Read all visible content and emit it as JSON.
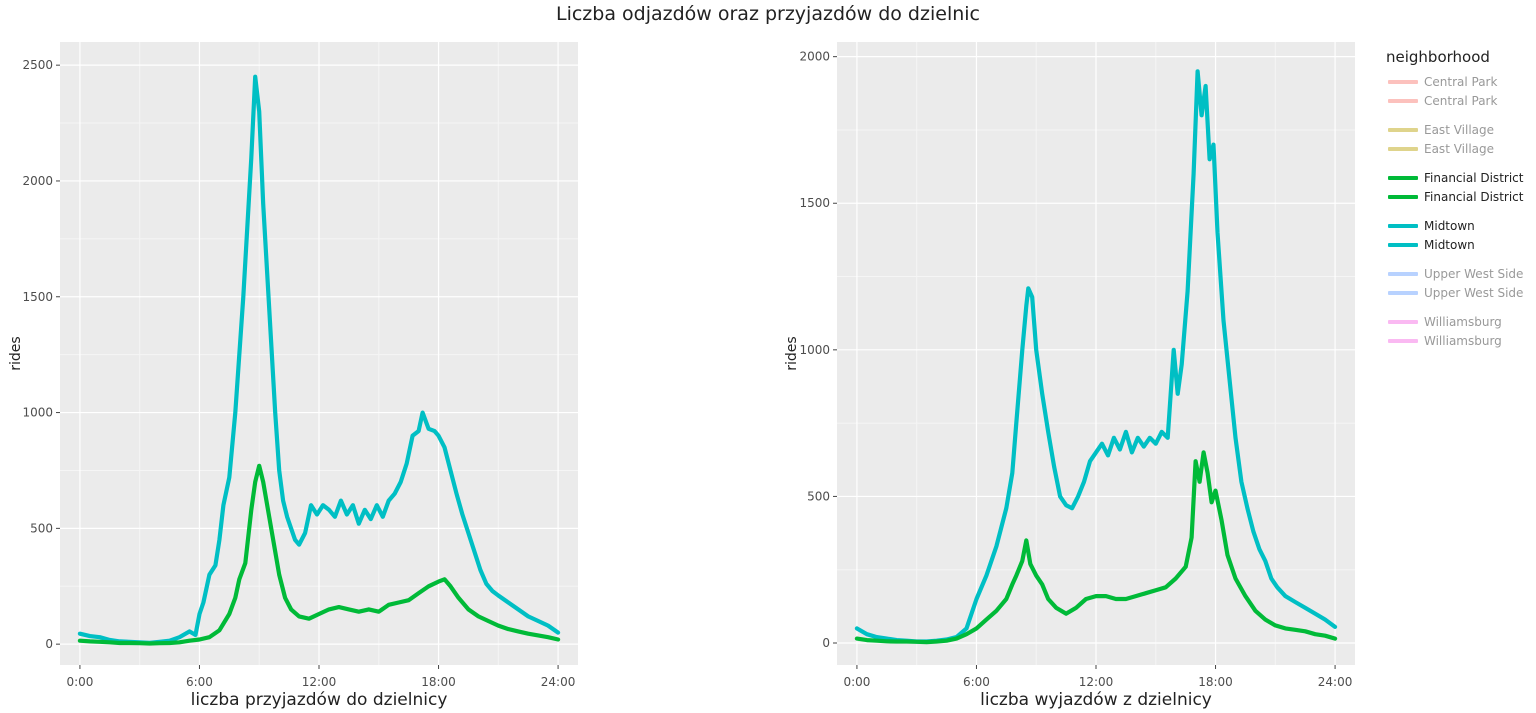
{
  "title": "Liczba odjazdów oraz przyjazdów do dzielnic",
  "legend": {
    "title": "neighborhood",
    "items": [
      {
        "name": "Central Park",
        "color": "#F8766D",
        "visible": false
      },
      {
        "name": "East Village",
        "color": "#B79F00",
        "visible": false
      },
      {
        "name": "Financial District",
        "color": "#00BA38",
        "visible": true
      },
      {
        "name": "Midtown",
        "color": "#00BFC4",
        "visible": true
      },
      {
        "name": "Upper West Side",
        "color": "#619CFF",
        "visible": false
      },
      {
        "name": "Williamsburg",
        "color": "#F564E3",
        "visible": false
      }
    ]
  },
  "chart_data": [
    {
      "type": "line",
      "xlabel": "liczba przyjazdów do dzielnicy",
      "ylabel": "rides",
      "xlim": [
        -1,
        25
      ],
      "ylim": [
        -90,
        2600
      ],
      "xticks": [
        0,
        6,
        12,
        18,
        24
      ],
      "xtick_labels": [
        "0:00",
        "6:00",
        "12:00",
        "18:00",
        "24:00"
      ],
      "yticks": [
        0,
        500,
        1000,
        1500,
        2000,
        2500
      ],
      "ytick_labels": [
        "0",
        "500",
        "1000",
        "1500",
        "2000",
        "2500"
      ],
      "grid": true,
      "series": [
        {
          "name": "Midtown",
          "color": "#00BFC4",
          "points": [
            [
              0,
              45
            ],
            [
              0.5,
              35
            ],
            [
              1,
              30
            ],
            [
              1.5,
              18
            ],
            [
              2,
              12
            ],
            [
              2.5,
              10
            ],
            [
              3,
              8
            ],
            [
              3.5,
              6
            ],
            [
              4,
              10
            ],
            [
              4.5,
              15
            ],
            [
              5,
              30
            ],
            [
              5.5,
              55
            ],
            [
              5.8,
              40
            ],
            [
              6,
              130
            ],
            [
              6.2,
              180
            ],
            [
              6.5,
              300
            ],
            [
              6.8,
              340
            ],
            [
              7,
              450
            ],
            [
              7.2,
              600
            ],
            [
              7.5,
              720
            ],
            [
              7.8,
              1000
            ],
            [
              8,
              1250
            ],
            [
              8.2,
              1500
            ],
            [
              8.4,
              1800
            ],
            [
              8.6,
              2100
            ],
            [
              8.8,
              2450
            ],
            [
              9,
              2300
            ],
            [
              9.2,
              1900
            ],
            [
              9.4,
              1600
            ],
            [
              9.6,
              1300
            ],
            [
              9.8,
              1000
            ],
            [
              10,
              750
            ],
            [
              10.2,
              620
            ],
            [
              10.4,
              550
            ],
            [
              10.6,
              500
            ],
            [
              10.8,
              450
            ],
            [
              11,
              430
            ],
            [
              11.3,
              480
            ],
            [
              11.6,
              600
            ],
            [
              11.9,
              560
            ],
            [
              12.2,
              600
            ],
            [
              12.5,
              580
            ],
            [
              12.8,
              550
            ],
            [
              13.1,
              620
            ],
            [
              13.4,
              560
            ],
            [
              13.7,
              600
            ],
            [
              14,
              520
            ],
            [
              14.3,
              580
            ],
            [
              14.6,
              540
            ],
            [
              14.9,
              600
            ],
            [
              15.2,
              550
            ],
            [
              15.5,
              620
            ],
            [
              15.8,
              650
            ],
            [
              16.1,
              700
            ],
            [
              16.4,
              780
            ],
            [
              16.7,
              900
            ],
            [
              17,
              920
            ],
            [
              17.2,
              1000
            ],
            [
              17.5,
              930
            ],
            [
              17.8,
              920
            ],
            [
              18,
              900
            ],
            [
              18.3,
              850
            ],
            [
              18.6,
              750
            ],
            [
              18.9,
              650
            ],
            [
              19.2,
              560
            ],
            [
              19.5,
              480
            ],
            [
              19.8,
              400
            ],
            [
              20.1,
              320
            ],
            [
              20.4,
              260
            ],
            [
              20.7,
              230
            ],
            [
              21,
              210
            ],
            [
              21.5,
              180
            ],
            [
              22,
              150
            ],
            [
              22.5,
              120
            ],
            [
              23,
              100
            ],
            [
              23.5,
              80
            ],
            [
              24,
              50
            ]
          ]
        },
        {
          "name": "Financial District",
          "color": "#00BA38",
          "points": [
            [
              0,
              15
            ],
            [
              0.5,
              12
            ],
            [
              1,
              10
            ],
            [
              1.5,
              8
            ],
            [
              2,
              5
            ],
            [
              2.5,
              5
            ],
            [
              3,
              4
            ],
            [
              3.5,
              3
            ],
            [
              4,
              4
            ],
            [
              4.5,
              5
            ],
            [
              5,
              8
            ],
            [
              5.5,
              15
            ],
            [
              6,
              20
            ],
            [
              6.5,
              30
            ],
            [
              7,
              60
            ],
            [
              7.5,
              130
            ],
            [
              7.8,
              200
            ],
            [
              8,
              280
            ],
            [
              8.3,
              350
            ],
            [
              8.6,
              580
            ],
            [
              8.8,
              700
            ],
            [
              9,
              770
            ],
            [
              9.2,
              700
            ],
            [
              9.5,
              550
            ],
            [
              9.8,
              400
            ],
            [
              10,
              300
            ],
            [
              10.3,
              200
            ],
            [
              10.6,
              150
            ],
            [
              11,
              120
            ],
            [
              11.5,
              110
            ],
            [
              12,
              130
            ],
            [
              12.5,
              150
            ],
            [
              13,
              160
            ],
            [
              13.5,
              150
            ],
            [
              14,
              140
            ],
            [
              14.5,
              150
            ],
            [
              15,
              140
            ],
            [
              15.5,
              170
            ],
            [
              16,
              180
            ],
            [
              16.5,
              190
            ],
            [
              17,
              220
            ],
            [
              17.5,
              250
            ],
            [
              18,
              270
            ],
            [
              18.3,
              280
            ],
            [
              18.6,
              250
            ],
            [
              19,
              200
            ],
            [
              19.5,
              150
            ],
            [
              20,
              120
            ],
            [
              20.5,
              100
            ],
            [
              21,
              80
            ],
            [
              21.5,
              65
            ],
            [
              22,
              55
            ],
            [
              22.5,
              45
            ],
            [
              23,
              38
            ],
            [
              23.5,
              30
            ],
            [
              24,
              20
            ]
          ]
        }
      ]
    },
    {
      "type": "line",
      "xlabel": "liczba wyjazdów z dzielnicy",
      "ylabel": "rides",
      "xlim": [
        -1,
        25
      ],
      "ylim": [
        -75,
        2050
      ],
      "xticks": [
        0,
        6,
        12,
        18,
        24
      ],
      "xtick_labels": [
        "0:00",
        "6:00",
        "12:00",
        "18:00",
        "24:00"
      ],
      "yticks": [
        0,
        500,
        1000,
        1500,
        2000
      ],
      "ytick_labels": [
        "0",
        "500",
        "1000",
        "1500",
        "2000"
      ],
      "grid": true,
      "series": [
        {
          "name": "Midtown",
          "color": "#00BFC4",
          "points": [
            [
              0,
              50
            ],
            [
              0.5,
              30
            ],
            [
              1,
              20
            ],
            [
              1.5,
              15
            ],
            [
              2,
              10
            ],
            [
              2.5,
              8
            ],
            [
              3,
              5
            ],
            [
              3.5,
              5
            ],
            [
              4,
              8
            ],
            [
              4.5,
              12
            ],
            [
              5,
              20
            ],
            [
              5.5,
              50
            ],
            [
              6,
              150
            ],
            [
              6.5,
              230
            ],
            [
              7,
              330
            ],
            [
              7.5,
              460
            ],
            [
              7.8,
              580
            ],
            [
              8,
              750
            ],
            [
              8.3,
              1000
            ],
            [
              8.5,
              1150
            ],
            [
              8.6,
              1210
            ],
            [
              8.8,
              1180
            ],
            [
              9,
              1000
            ],
            [
              9.3,
              850
            ],
            [
              9.6,
              720
            ],
            [
              9.9,
              600
            ],
            [
              10.2,
              500
            ],
            [
              10.5,
              470
            ],
            [
              10.8,
              460
            ],
            [
              11.1,
              500
            ],
            [
              11.4,
              550
            ],
            [
              11.7,
              620
            ],
            [
              12,
              650
            ],
            [
              12.3,
              680
            ],
            [
              12.6,
              640
            ],
            [
              12.9,
              700
            ],
            [
              13.2,
              660
            ],
            [
              13.5,
              720
            ],
            [
              13.8,
              650
            ],
            [
              14.1,
              700
            ],
            [
              14.4,
              670
            ],
            [
              14.7,
              700
            ],
            [
              15,
              680
            ],
            [
              15.3,
              720
            ],
            [
              15.6,
              700
            ],
            [
              15.9,
              1000
            ],
            [
              16.1,
              850
            ],
            [
              16.3,
              950
            ],
            [
              16.6,
              1200
            ],
            [
              16.9,
              1600
            ],
            [
              17.1,
              1950
            ],
            [
              17.3,
              1800
            ],
            [
              17.5,
              1900
            ],
            [
              17.7,
              1650
            ],
            [
              17.9,
              1700
            ],
            [
              18.1,
              1400
            ],
            [
              18.4,
              1100
            ],
            [
              18.7,
              900
            ],
            [
              19,
              700
            ],
            [
              19.3,
              550
            ],
            [
              19.6,
              460
            ],
            [
              19.9,
              380
            ],
            [
              20.2,
              320
            ],
            [
              20.5,
              280
            ],
            [
              20.8,
              220
            ],
            [
              21.1,
              190
            ],
            [
              21.5,
              160
            ],
            [
              22,
              140
            ],
            [
              22.5,
              120
            ],
            [
              23,
              100
            ],
            [
              23.5,
              80
            ],
            [
              24,
              55
            ]
          ]
        },
        {
          "name": "Financial District",
          "color": "#00BA38",
          "points": [
            [
              0,
              15
            ],
            [
              0.5,
              10
            ],
            [
              1,
              8
            ],
            [
              1.5,
              6
            ],
            [
              2,
              5
            ],
            [
              2.5,
              5
            ],
            [
              3,
              4
            ],
            [
              3.5,
              3
            ],
            [
              4,
              5
            ],
            [
              4.5,
              8
            ],
            [
              5,
              15
            ],
            [
              5.5,
              30
            ],
            [
              6,
              50
            ],
            [
              6.5,
              80
            ],
            [
              7,
              110
            ],
            [
              7.5,
              150
            ],
            [
              7.8,
              200
            ],
            [
              8,
              230
            ],
            [
              8.3,
              280
            ],
            [
              8.5,
              350
            ],
            [
              8.7,
              270
            ],
            [
              9,
              230
            ],
            [
              9.3,
              200
            ],
            [
              9.6,
              150
            ],
            [
              10,
              120
            ],
            [
              10.5,
              100
            ],
            [
              11,
              120
            ],
            [
              11.5,
              150
            ],
            [
              12,
              160
            ],
            [
              12.5,
              160
            ],
            [
              13,
              150
            ],
            [
              13.5,
              150
            ],
            [
              14,
              160
            ],
            [
              14.5,
              170
            ],
            [
              15,
              180
            ],
            [
              15.5,
              190
            ],
            [
              16,
              220
            ],
            [
              16.5,
              260
            ],
            [
              16.8,
              360
            ],
            [
              17,
              620
            ],
            [
              17.2,
              550
            ],
            [
              17.4,
              650
            ],
            [
              17.6,
              580
            ],
            [
              17.8,
              480
            ],
            [
              18,
              520
            ],
            [
              18.3,
              420
            ],
            [
              18.6,
              300
            ],
            [
              19,
              220
            ],
            [
              19.5,
              160
            ],
            [
              20,
              110
            ],
            [
              20.5,
              80
            ],
            [
              21,
              60
            ],
            [
              21.5,
              50
            ],
            [
              22,
              45
            ],
            [
              22.5,
              40
            ],
            [
              23,
              30
            ],
            [
              23.5,
              25
            ],
            [
              24,
              15
            ]
          ]
        }
      ]
    }
  ]
}
